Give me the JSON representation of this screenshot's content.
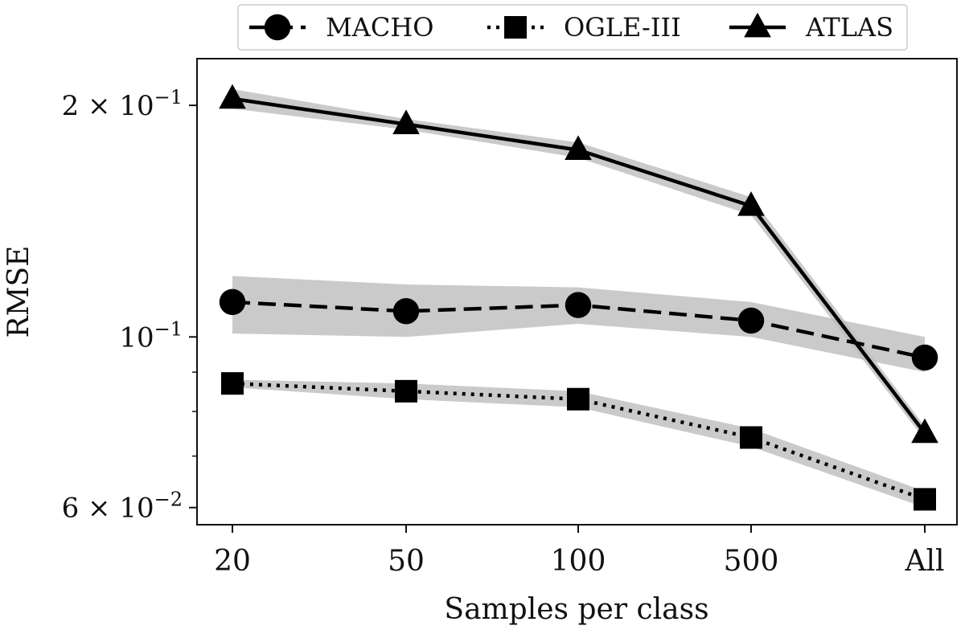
{
  "chart_data": {
    "type": "line",
    "title": "",
    "xlabel": "Samples per class",
    "ylabel": "RMSE",
    "yscale": "log",
    "categories": [
      "20",
      "50",
      "100",
      "500",
      "All"
    ],
    "ylim": [
      0.057,
      0.23
    ],
    "yticks": [
      {
        "value": 0.2,
        "base": "2 × 10",
        "exp": "−1"
      },
      {
        "value": 0.1,
        "base": "10",
        "exp": "−1"
      },
      {
        "value": 0.06,
        "base": "6 × 10",
        "exp": "−2"
      }
    ],
    "legend_position": "top-center",
    "series": [
      {
        "name": "MACHO",
        "marker": "circle",
        "linestyle": "dashed",
        "values": [
          0.111,
          0.108,
          0.11,
          0.105,
          0.094
        ],
        "band_lower": [
          0.101,
          0.1,
          0.104,
          0.1,
          0.09
        ],
        "band_upper": [
          0.12,
          0.117,
          0.116,
          0.111,
          0.1
        ]
      },
      {
        "name": "OGLE-III",
        "marker": "square",
        "linestyle": "dotted",
        "values": [
          0.087,
          0.085,
          0.083,
          0.074,
          0.0615
        ],
        "band_lower": [
          0.086,
          0.083,
          0.081,
          0.072,
          0.06
        ],
        "band_upper": [
          0.088,
          0.087,
          0.085,
          0.076,
          0.063
        ]
      },
      {
        "name": "ATLAS",
        "marker": "triangle",
        "linestyle": "solid",
        "values": [
          0.204,
          0.189,
          0.175,
          0.148,
          0.075
        ],
        "band_lower": [
          0.198,
          0.186,
          0.171,
          0.144,
          0.0735
        ],
        "band_upper": [
          0.21,
          0.192,
          0.179,
          0.152,
          0.0765
        ]
      }
    ]
  }
}
